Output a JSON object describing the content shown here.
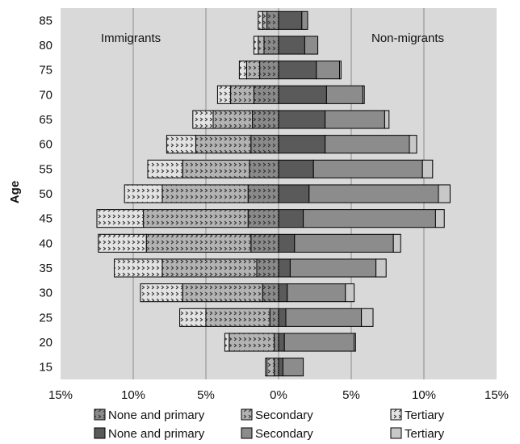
{
  "chart_data": {
    "type": "bar",
    "subtype": "population-pyramid (stacked horizontal bars, two sides)",
    "ylabel": "Age",
    "xlabel": "",
    "categories": [
      "15",
      "20",
      "25",
      "30",
      "35",
      "40",
      "45",
      "50",
      "55",
      "60",
      "65",
      "70",
      "75",
      "80",
      "85"
    ],
    "x_ticks": [
      "15%",
      "10%",
      "5%",
      "0%",
      "5%",
      "10%",
      "15%"
    ],
    "xlim": [
      -15,
      15
    ],
    "grid": "vertical gridlines at 5% intervals",
    "annotations": {
      "left": "Immigrants",
      "right": "Non-migrants"
    },
    "series": [
      {
        "name": "None and primary",
        "group": "Immigrants",
        "side": "left",
        "color": "#8a8a8a",
        "pattern": "dotted",
        "values": [
          0.3,
          0.3,
          0.6,
          1.1,
          1.5,
          1.9,
          2.1,
          2.1,
          2.0,
          1.9,
          1.8,
          1.7,
          1.3,
          1.0,
          0.8
        ]
      },
      {
        "name": "Secondary",
        "group": "Immigrants",
        "side": "left",
        "color": "#b3b3b3",
        "pattern": "dotted",
        "values": [
          0.5,
          3.1,
          4.4,
          5.5,
          6.5,
          7.2,
          7.2,
          5.9,
          4.6,
          3.8,
          2.7,
          1.6,
          0.9,
          0.4,
          0.3
        ]
      },
      {
        "name": "Tertiary",
        "group": "Immigrants",
        "side": "left",
        "color": "#e3e3e3",
        "pattern": "dotted",
        "values": [
          0.1,
          0.3,
          1.8,
          2.9,
          3.3,
          3.3,
          3.2,
          2.6,
          2.4,
          2.0,
          1.4,
          0.9,
          0.5,
          0.3,
          0.3
        ]
      },
      {
        "name": "None and primary",
        "group": "Non-migrants",
        "side": "right",
        "color": "#5a5a5a",
        "values": [
          0.3,
          0.4,
          0.5,
          0.6,
          0.8,
          1.1,
          1.7,
          2.1,
          2.4,
          3.2,
          3.2,
          3.3,
          2.6,
          1.8,
          1.6
        ]
      },
      {
        "name": "Secondary",
        "group": "Non-migrants",
        "side": "right",
        "color": "#8c8c8c",
        "values": [
          1.4,
          4.8,
          5.2,
          4.0,
          5.9,
          6.8,
          9.1,
          8.9,
          7.5,
          5.8,
          4.1,
          2.5,
          1.6,
          0.9,
          0.4
        ]
      },
      {
        "name": "Tertiary",
        "group": "Non-migrants",
        "side": "right",
        "color": "#c8c8c8",
        "values": [
          0.0,
          0.1,
          0.8,
          0.6,
          0.7,
          0.5,
          0.6,
          0.8,
          0.7,
          0.5,
          0.3,
          0.1,
          0.1,
          0.0,
          0.0
        ]
      }
    ],
    "legend": {
      "placement": "bottom",
      "rows": [
        [
          "None and primary",
          "Secondary",
          "Tertiary"
        ],
        [
          "None and primary",
          "Secondary",
          "Tertiary"
        ]
      ]
    },
    "colors": {
      "plot_background": "#d9d9d9",
      "gridline": "#8c8c8c",
      "bar_border": "#000000"
    }
  }
}
